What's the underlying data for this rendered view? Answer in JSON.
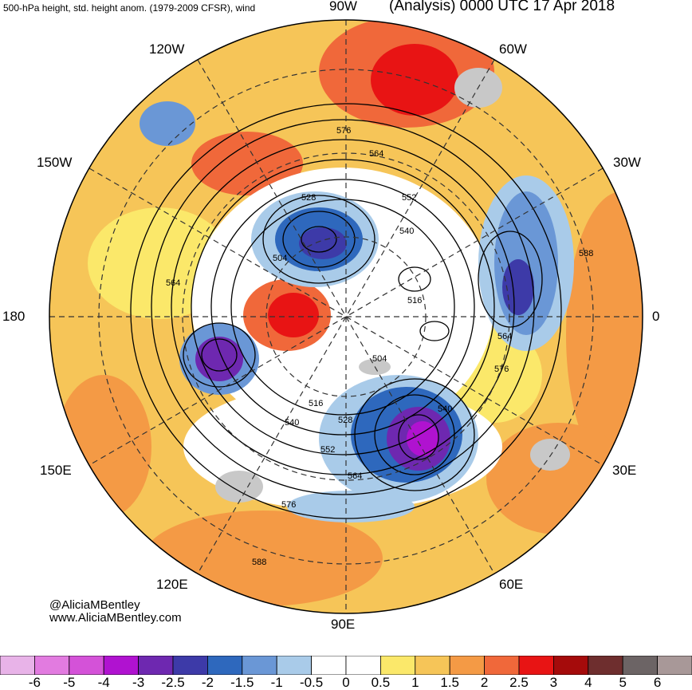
{
  "header": {
    "left": "500-hPa height, std. height anom. (1979-2009 CFSR), wind",
    "right": "(Analysis) 0000 UTC 17 Apr 2018"
  },
  "longitudes": {
    "top": "90W",
    "bottom": "90E",
    "left": "180",
    "right": "0",
    "upper_left": "120W",
    "upper_right": "60W",
    "mid_left_top": "150W",
    "mid_right_top": "30W",
    "mid_left_bottom": "150E",
    "mid_right_bottom": "30E",
    "lower_left": "120E",
    "lower_right": "60E"
  },
  "contour_labels": [
    "576",
    "564",
    "552",
    "528",
    "540",
    "504",
    "516",
    "504",
    "564",
    "576",
    "588",
    "516",
    "528",
    "540",
    "552",
    "564",
    "576",
    "588",
    "540",
    "564"
  ],
  "credit": {
    "name": "@AliciaMBentley",
    "site": "www.AliciaMBentley.com"
  },
  "colorbar": {
    "colors": [
      "#e8b3e8",
      "#e27be0",
      "#d452d8",
      "#b012d0",
      "#6e28b0",
      "#3d3aa8",
      "#2e68bd",
      "#6a97d6",
      "#a9cbe9",
      "#ffffff",
      "#ffffff",
      "#fbe86a",
      "#f6c558",
      "#f49a45",
      "#f0683a",
      "#e81414",
      "#a50b0b",
      "#6e2e2e",
      "#6c6465",
      "#a89898"
    ],
    "labels": [
      "-6",
      "-5",
      "-4",
      "-3",
      "-2.5",
      "-2",
      "-1.5",
      "-1",
      "-0.5",
      "0",
      "0.5",
      "1",
      "1.5",
      "2",
      "2.5",
      "3",
      "4",
      "5",
      "6"
    ]
  }
}
